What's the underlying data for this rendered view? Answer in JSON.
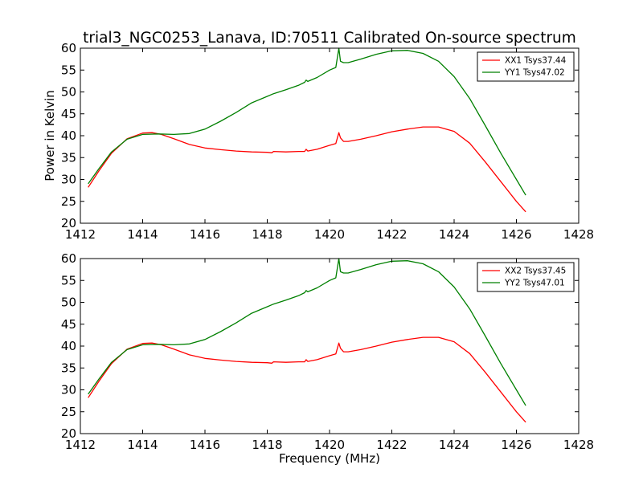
{
  "figure": {
    "title": "trial3_NGC0253_Lanava, ID:70511 Calibrated On-source spectrum",
    "xlabel": "Frequency (MHz)",
    "ylabel": "Power in Kelvin"
  },
  "chart_data": [
    {
      "type": "line",
      "title": "trial3_NGC0253_Lanava, ID:70511 Calibrated On-source spectrum",
      "xlabel": "",
      "ylabel": "Power in Kelvin",
      "xlim": [
        1412,
        1428
      ],
      "ylim": [
        20,
        60
      ],
      "xticks": [
        1412,
        1414,
        1416,
        1418,
        1420,
        1422,
        1424,
        1426,
        1428
      ],
      "yticks": [
        20,
        25,
        30,
        35,
        40,
        45,
        50,
        55,
        60
      ],
      "grid": false,
      "legend": "top-right",
      "series": [
        {
          "name": "XX1 Tsys37.44",
          "color": "#ff0000",
          "x": [
            1412.25,
            1412.6,
            1413.0,
            1413.5,
            1414.0,
            1414.3,
            1414.6,
            1415.0,
            1415.5,
            1416.0,
            1416.5,
            1417.0,
            1417.5,
            1418.0,
            1418.15,
            1418.2,
            1418.6,
            1419.0,
            1419.2,
            1419.25,
            1419.3,
            1419.6,
            1420.0,
            1420.2,
            1420.3,
            1420.35,
            1420.45,
            1420.6,
            1421.0,
            1421.5,
            1422.0,
            1422.5,
            1423.0,
            1423.5,
            1424.0,
            1424.5,
            1425.0,
            1425.5,
            1426.0,
            1426.3
          ],
          "y": [
            28.2,
            32.0,
            36.0,
            39.3,
            40.6,
            40.7,
            40.3,
            39.3,
            38.0,
            37.2,
            36.8,
            36.5,
            36.3,
            36.2,
            36.1,
            36.4,
            36.3,
            36.4,
            36.4,
            36.9,
            36.5,
            36.9,
            37.8,
            38.2,
            40.7,
            39.5,
            38.7,
            38.7,
            39.2,
            40.0,
            40.9,
            41.5,
            42.0,
            42.0,
            41.0,
            38.3,
            34.0,
            29.5,
            25.0,
            22.6
          ]
        },
        {
          "name": "YY1 Tsys47.02",
          "color": "#008000",
          "x": [
            1412.25,
            1412.6,
            1413.0,
            1413.5,
            1414.0,
            1414.5,
            1415.0,
            1415.5,
            1416.0,
            1416.5,
            1417.0,
            1417.5,
            1418.0,
            1418.2,
            1418.6,
            1419.0,
            1419.2,
            1419.25,
            1419.3,
            1419.6,
            1420.0,
            1420.2,
            1420.3,
            1420.35,
            1420.45,
            1420.6,
            1421.0,
            1421.5,
            1422.0,
            1422.5,
            1423.0,
            1423.5,
            1424.0,
            1424.5,
            1425.0,
            1425.5,
            1426.0,
            1426.3
          ],
          "y": [
            29.0,
            32.5,
            36.3,
            39.2,
            40.3,
            40.4,
            40.3,
            40.5,
            41.5,
            43.3,
            45.3,
            47.5,
            49.0,
            49.6,
            50.5,
            51.5,
            52.2,
            52.7,
            52.4,
            53.3,
            55.0,
            55.6,
            60.0,
            57.0,
            56.7,
            56.7,
            57.5,
            58.6,
            59.4,
            59.5,
            58.8,
            57.0,
            53.5,
            48.5,
            42.3,
            36.0,
            30.0,
            26.4
          ]
        }
      ]
    },
    {
      "type": "line",
      "title": "",
      "xlabel": "Frequency (MHz)",
      "ylabel": "",
      "xlim": [
        1412,
        1428
      ],
      "ylim": [
        20,
        60
      ],
      "xticks": [
        1412,
        1414,
        1416,
        1418,
        1420,
        1422,
        1424,
        1426,
        1428
      ],
      "yticks": [
        20,
        25,
        30,
        35,
        40,
        45,
        50,
        55,
        60
      ],
      "grid": false,
      "legend": "top-right",
      "series": [
        {
          "name": "XX2 Tsys37.45",
          "color": "#ff0000",
          "x": [
            1412.25,
            1412.6,
            1413.0,
            1413.5,
            1414.0,
            1414.3,
            1414.6,
            1415.0,
            1415.5,
            1416.0,
            1416.5,
            1417.0,
            1417.5,
            1418.0,
            1418.15,
            1418.2,
            1418.6,
            1419.0,
            1419.2,
            1419.25,
            1419.3,
            1419.6,
            1420.0,
            1420.2,
            1420.3,
            1420.35,
            1420.45,
            1420.6,
            1421.0,
            1421.5,
            1422.0,
            1422.5,
            1423.0,
            1423.5,
            1424.0,
            1424.5,
            1425.0,
            1425.5,
            1426.0,
            1426.3
          ],
          "y": [
            28.2,
            32.0,
            36.0,
            39.3,
            40.6,
            40.7,
            40.3,
            39.3,
            38.0,
            37.2,
            36.8,
            36.5,
            36.3,
            36.2,
            36.1,
            36.4,
            36.3,
            36.4,
            36.4,
            36.9,
            36.5,
            36.9,
            37.8,
            38.2,
            40.7,
            39.5,
            38.7,
            38.7,
            39.2,
            40.0,
            40.9,
            41.5,
            42.0,
            42.0,
            41.0,
            38.3,
            34.0,
            29.5,
            25.0,
            22.6
          ]
        },
        {
          "name": "YY2 Tsys47.01",
          "color": "#008000",
          "x": [
            1412.25,
            1412.6,
            1413.0,
            1413.5,
            1414.0,
            1414.5,
            1415.0,
            1415.5,
            1416.0,
            1416.5,
            1417.0,
            1417.5,
            1418.0,
            1418.2,
            1418.6,
            1419.0,
            1419.2,
            1419.25,
            1419.3,
            1419.6,
            1420.0,
            1420.2,
            1420.3,
            1420.35,
            1420.45,
            1420.6,
            1421.0,
            1421.5,
            1422.0,
            1422.5,
            1423.0,
            1423.5,
            1424.0,
            1424.5,
            1425.0,
            1425.5,
            1426.0,
            1426.3
          ],
          "y": [
            29.0,
            32.5,
            36.3,
            39.2,
            40.3,
            40.4,
            40.3,
            40.5,
            41.5,
            43.3,
            45.3,
            47.5,
            49.0,
            49.6,
            50.5,
            51.5,
            52.2,
            52.7,
            52.4,
            53.3,
            55.0,
            55.6,
            60.0,
            57.0,
            56.7,
            56.7,
            57.5,
            58.6,
            59.4,
            59.5,
            58.8,
            57.0,
            53.5,
            48.5,
            42.3,
            36.0,
            30.0,
            26.4
          ]
        }
      ]
    }
  ]
}
